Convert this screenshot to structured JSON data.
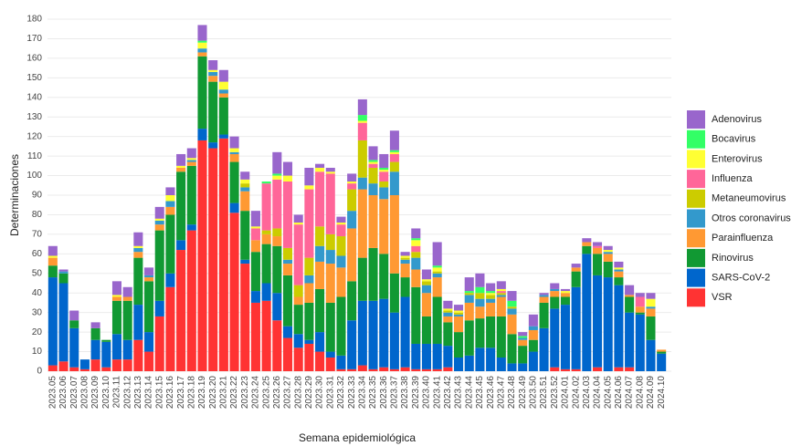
{
  "chart_data": {
    "type": "stacked-bar",
    "x_label": "Semana epidemiológica",
    "y_label": "Determinaciones",
    "categories": [
      "2023.05",
      "2023.06",
      "2023.07",
      "2023.08",
      "2023.09",
      "2023.10",
      "2023.11",
      "2023.12",
      "2023.13",
      "2023.14",
      "2023.15",
      "2023.16",
      "2023.17",
      "2023.18",
      "2023.19",
      "2023.20",
      "2023.21",
      "2023.22",
      "2023.23",
      "2023.24",
      "2023.25",
      "2023.26",
      "2023.27",
      "2023.28",
      "2023.29",
      "2023.30",
      "2023.31",
      "2023.32",
      "2023.33",
      "2023.34",
      "2023.35",
      "2023.36",
      "2023.37",
      "2023.38",
      "2023.39",
      "2023.40",
      "2023.41",
      "2023.42",
      "2023.43",
      "2023.44",
      "2023.45",
      "2023.46",
      "2023.47",
      "2023.48",
      "2023.49",
      "2023.50",
      "2023.51",
      "2023.52",
      "2024.01",
      "2024.02",
      "2024.03",
      "2024.04",
      "2024.05",
      "2024.06",
      "2024.07",
      "2024.08",
      "2024.09",
      "2024.10"
    ],
    "series": [
      {
        "name": "Adenovirus",
        "color": "#9966cc",
        "values": [
          5,
          1,
          5,
          0,
          3,
          0,
          7,
          5,
          7,
          4,
          6,
          4,
          6,
          5,
          8,
          5,
          6,
          6,
          4,
          8,
          0,
          11,
          7,
          4,
          9,
          2,
          2,
          3,
          4,
          8,
          7,
          7,
          10,
          2,
          5,
          5,
          12,
          4,
          3,
          7,
          7,
          4,
          4,
          5,
          2,
          6,
          1,
          3,
          1,
          2,
          2,
          2,
          2,
          3,
          5,
          2,
          3,
          0
        ]
      },
      {
        "name": "Bocavirus",
        "color": "#33ff66",
        "values": [
          0,
          0,
          0,
          0,
          0,
          0,
          0,
          0,
          0,
          0,
          0,
          0,
          0,
          0,
          1,
          0,
          0,
          0,
          0,
          0,
          1,
          1,
          0,
          0,
          0,
          0,
          0,
          0,
          0,
          3,
          1,
          1,
          1,
          0,
          1,
          0,
          1,
          0,
          0,
          1,
          3,
          1,
          0,
          3,
          1,
          0,
          0,
          0,
          0,
          0,
          0,
          0,
          0,
          0,
          0,
          0,
          0,
          0
        ]
      },
      {
        "name": "Enterovirus",
        "color": "#ffff33",
        "values": [
          1,
          0,
          0,
          0,
          0,
          0,
          1,
          0,
          1,
          0,
          1,
          3,
          1,
          1,
          3,
          1,
          4,
          2,
          2,
          1,
          0,
          2,
          3,
          1,
          2,
          2,
          1,
          1,
          1,
          1,
          1,
          1,
          1,
          1,
          3,
          1,
          2,
          1,
          1,
          0,
          0,
          1,
          1,
          0,
          0,
          0,
          0,
          0,
          1,
          0,
          0,
          0,
          1,
          1,
          0,
          0,
          4,
          0
        ]
      },
      {
        "name": "Influenza",
        "color": "#ff6699",
        "values": [
          0,
          0,
          0,
          0,
          0,
          0,
          0,
          0,
          0,
          0,
          0,
          0,
          0,
          0,
          0,
          0,
          0,
          0,
          0,
          6,
          24,
          25,
          34,
          31,
          35,
          28,
          31,
          6,
          3,
          9,
          2,
          5,
          4,
          0,
          3,
          0,
          0,
          0,
          0,
          0,
          0,
          0,
          1,
          0,
          0,
          0,
          0,
          0,
          0,
          0,
          0,
          1,
          0,
          0,
          0,
          5,
          0,
          0
        ]
      },
      {
        "name": "Metaneumovirus",
        "color": "#cccc00",
        "values": [
          0,
          0,
          0,
          0,
          0,
          0,
          0,
          0,
          0,
          0,
          0,
          0,
          0,
          0,
          0,
          0,
          0,
          0,
          2,
          0,
          2,
          4,
          6,
          6,
          9,
          10,
          8,
          10,
          11,
          19,
          8,
          3,
          5,
          1,
          3,
          2,
          1,
          1,
          1,
          1,
          3,
          2,
          1,
          1,
          0,
          0,
          0,
          0,
          0,
          0,
          0,
          0,
          0,
          0,
          0,
          0,
          0,
          0
        ]
      },
      {
        "name": "Otros coronavirus",
        "color": "#3399cc",
        "values": [
          0,
          1,
          0,
          0,
          0,
          0,
          0,
          0,
          2,
          1,
          2,
          3,
          0,
          1,
          2,
          2,
          2,
          1,
          2,
          0,
          0,
          0,
          2,
          0,
          4,
          8,
          7,
          6,
          9,
          6,
          6,
          6,
          12,
          2,
          6,
          4,
          2,
          2,
          1,
          4,
          4,
          2,
          1,
          3,
          1,
          2,
          1,
          1,
          0,
          0,
          0,
          0,
          1,
          1,
          0,
          0,
          1,
          0
        ]
      },
      {
        "name": "Parainfluenza",
        "color": "#ff9933",
        "values": [
          4,
          0,
          0,
          0,
          0,
          0,
          2,
          2,
          3,
          2,
          3,
          4,
          2,
          2,
          2,
          3,
          2,
          4,
          10,
          6,
          5,
          5,
          6,
          4,
          10,
          14,
          20,
          15,
          27,
          35,
          27,
          28,
          40,
          7,
          9,
          12,
          10,
          3,
          8,
          9,
          6,
          7,
          10,
          10,
          3,
          5,
          3,
          3,
          2,
          2,
          2,
          3,
          4,
          3,
          1,
          3,
          4,
          1
        ]
      },
      {
        "name": "Rinovirus",
        "color": "#119933",
        "values": [
          6,
          5,
          4,
          0,
          6,
          1,
          17,
          20,
          24,
          26,
          36,
          30,
          35,
          30,
          37,
          31,
          19,
          21,
          25,
          20,
          20,
          24,
          26,
          15,
          19,
          22,
          25,
          30,
          20,
          22,
          27,
          23,
          20,
          10,
          29,
          14,
          24,
          12,
          13,
          18,
          15,
          16,
          21,
          15,
          9,
          6,
          13,
          6,
          4,
          8,
          4,
          11,
          8,
          4,
          8,
          1,
          12,
          1
        ]
      },
      {
        "name": "SARS-CoV-2",
        "color": "#0066cc",
        "values": [
          45,
          40,
          20,
          5,
          10,
          13,
          13,
          10,
          18,
          10,
          8,
          7,
          5,
          3,
          6,
          3,
          2,
          5,
          2,
          6,
          9,
          14,
          6,
          7,
          2,
          10,
          3,
          7,
          25,
          33,
          35,
          35,
          29,
          36,
          13,
          13,
          13,
          11,
          7,
          8,
          12,
          12,
          7,
          4,
          4,
          10,
          22,
          30,
          33,
          42,
          60,
          47,
          48,
          42,
          28,
          29,
          16,
          9
        ]
      },
      {
        "name": "VSR",
        "color": "#ff3333",
        "values": [
          3,
          5,
          2,
          1,
          6,
          2,
          6,
          6,
          16,
          10,
          28,
          43,
          62,
          72,
          118,
          114,
          119,
          81,
          55,
          35,
          36,
          26,
          17,
          12,
          14,
          10,
          7,
          1,
          1,
          3,
          1,
          2,
          1,
          2,
          1,
          1,
          1,
          2,
          0,
          0,
          0,
          0,
          0,
          0,
          0,
          0,
          0,
          2,
          1,
          1,
          0,
          2,
          0,
          2,
          2,
          0,
          0,
          0
        ]
      }
    ],
    "ylim": [
      0,
      180
    ],
    "yticks": [
      0,
      10,
      20,
      30,
      40,
      50,
      60,
      70,
      80,
      90,
      100,
      110,
      120,
      130,
      140,
      150,
      160,
      170,
      180
    ],
    "grid": true,
    "legend": "right"
  }
}
